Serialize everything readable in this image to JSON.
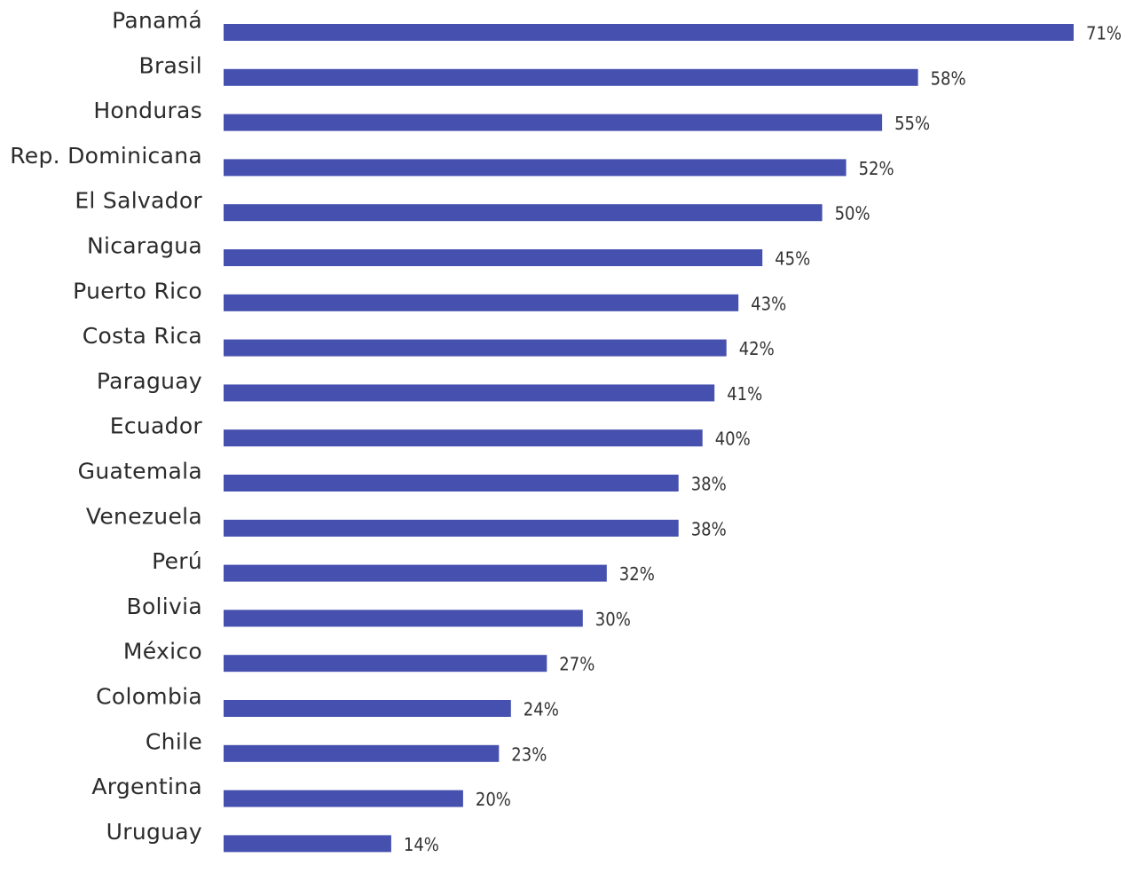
{
  "chart_data": {
    "type": "bar",
    "orientation": "horizontal",
    "title": "",
    "xlabel": "",
    "ylabel": "",
    "value_suffix": "%",
    "xlim": [
      0,
      71
    ],
    "grid": false,
    "bar_color": "#4650ae",
    "categories": [
      "Panamá",
      "Brasil",
      "Honduras",
      "Rep. Dominicana",
      "El Salvador",
      "Nicaragua",
      "Puerto Rico",
      "Costa Rica",
      "Paraguay",
      "Ecuador",
      "Guatemala",
      "Venezuela",
      "Perú",
      "Bolivia",
      "México",
      "Colombia",
      "Chile",
      "Argentina",
      "Uruguay"
    ],
    "values": [
      71,
      58,
      55,
      52,
      50,
      45,
      43,
      42,
      41,
      40,
      38,
      38,
      32,
      30,
      27,
      24,
      23,
      20,
      14
    ],
    "value_labels": [
      "71%",
      "58%",
      "55%",
      "52%",
      "50%",
      "45%",
      "43%",
      "42%",
      "41%",
      "40%",
      "38%",
      "38%",
      "32%",
      "30%",
      "27%",
      "24%",
      "23%",
      "20%",
      "14%"
    ]
  }
}
